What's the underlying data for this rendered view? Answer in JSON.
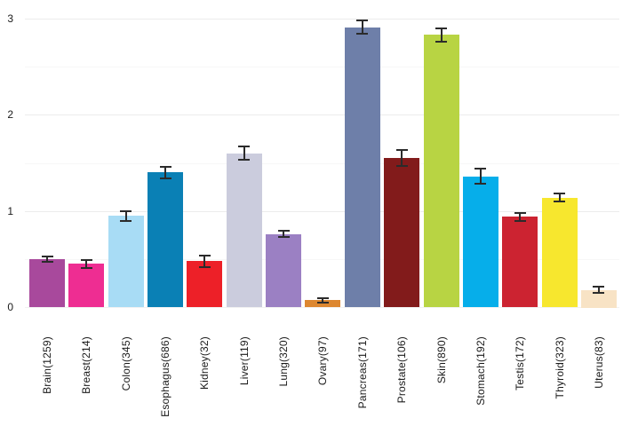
{
  "chart_data": {
    "type": "bar",
    "title": "",
    "xlabel": "",
    "ylabel": "",
    "ylim": [
      0,
      3
    ],
    "yticks": [
      "0",
      "1",
      "2",
      "3"
    ],
    "grid": true,
    "minor_grid_step": 0.5,
    "legend": null,
    "categories": [
      "Brain(1259)",
      "Breast(214)",
      "Colon(345)",
      "Esophagus(686)",
      "Kidney(32)",
      "Liver(119)",
      "Lung(320)",
      "Ovary(97)",
      "Pancreas(171)",
      "Prostate(106)",
      "Skin(890)",
      "Stomach(192)",
      "Testis(172)",
      "Thyroid(323)",
      "Uterus(83)"
    ],
    "values": [
      0.5,
      0.45,
      0.95,
      1.4,
      0.48,
      1.6,
      0.76,
      0.07,
      2.91,
      1.55,
      2.83,
      1.36,
      0.94,
      1.14,
      0.18
    ],
    "errors": [
      0.03,
      0.04,
      0.05,
      0.06,
      0.06,
      0.07,
      0.03,
      0.02,
      0.07,
      0.08,
      0.07,
      0.08,
      0.04,
      0.04,
      0.03
    ],
    "bar_colors": [
      "#A8499C",
      "#EE2D92",
      "#A8DCF5",
      "#0A80B5",
      "#ED2028",
      "#CBCCDD",
      "#9B80C3",
      "#DD8730",
      "#6E7FA9",
      "#821B1B",
      "#B8D443",
      "#06AEEA",
      "#CC2331",
      "#F7E72E",
      "#F8E3C5"
    ],
    "error_bar_color": "#2b2b2b",
    "tick_label_color": "#1a1a1a"
  }
}
